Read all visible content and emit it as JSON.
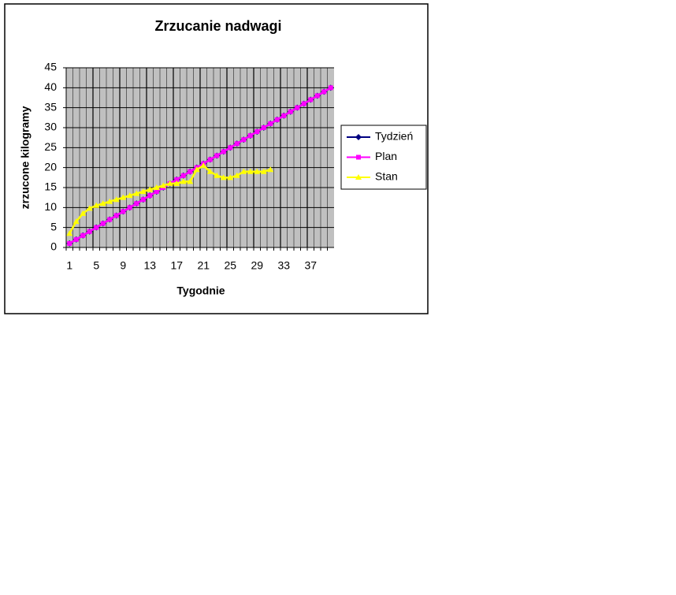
{
  "chart_data": {
    "type": "line",
    "title": "Zrzucanie nadwagi",
    "x_label": "Tygodnie",
    "y_label": "zrzucone kilogramy",
    "categories": [
      1,
      null,
      null,
      null,
      5,
      null,
      null,
      null,
      9,
      null,
      null,
      null,
      13,
      null,
      null,
      null,
      17,
      null,
      null,
      null,
      21,
      null,
      null,
      null,
      25,
      null,
      null,
      null,
      29,
      null,
      null,
      null,
      33,
      null,
      null,
      null,
      37,
      null,
      null,
      null
    ],
    "series": [
      {
        "name": "Tydzień",
        "color": "#000080",
        "marker": "diamond",
        "values": [
          1,
          2,
          3,
          4,
          5,
          6,
          7,
          8,
          9,
          10,
          11,
          12,
          13,
          14,
          15,
          16,
          17,
          18,
          19,
          20,
          21,
          22,
          23,
          24,
          25,
          26,
          27,
          28,
          29,
          30,
          31,
          32,
          33,
          34,
          35,
          36,
          37,
          38,
          39,
          40
        ]
      },
      {
        "name": "Plan",
        "color": "#ff00ff",
        "marker": "square",
        "values": [
          1,
          2,
          3,
          4,
          5,
          6,
          7,
          8,
          9,
          10,
          11,
          12,
          13,
          14,
          15,
          16,
          17,
          18,
          19,
          20,
          21,
          22,
          23,
          24,
          25,
          26,
          27,
          28,
          29,
          30,
          31,
          32,
          33,
          34,
          35,
          36,
          37,
          38,
          39,
          40
        ]
      },
      {
        "name": "Stan",
        "color": "#ffff00",
        "marker": "triangle",
        "values": [
          3.5,
          6.5,
          8.5,
          9.8,
          10.5,
          11,
          11.5,
          12,
          12.5,
          13,
          13.5,
          14,
          14.5,
          15,
          15.5,
          16,
          16,
          16.5,
          16.5,
          19.5,
          20.5,
          19,
          18,
          17.5,
          17.5,
          18,
          19,
          19,
          19,
          19,
          19.5,
          null,
          null,
          null,
          null,
          null,
          null,
          null,
          null,
          null
        ]
      }
    ],
    "ylim": [
      0,
      45
    ],
    "yticks": [
      0,
      5,
      10,
      15,
      20,
      25,
      30,
      35,
      40,
      45
    ],
    "grid": true,
    "legend": "right",
    "plot_background": "#c0c0c0"
  }
}
